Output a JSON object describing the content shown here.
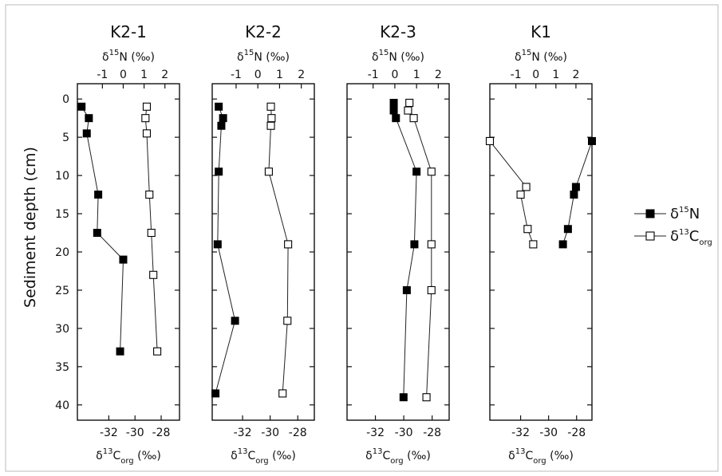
{
  "y_axis": {
    "label": "Sediment depth (cm)",
    "ticks": [
      "0",
      "5",
      "10",
      "15",
      "20",
      "25",
      "30",
      "35",
      "40"
    ]
  },
  "legend": {
    "n15": {
      "prefix": "δ",
      "sup": "15",
      "main": "N"
    },
    "c13": {
      "prefix": "δ",
      "sup": "13",
      "main": "C",
      "sub": "org"
    }
  },
  "top_axis_label": {
    "prefix": "δ",
    "sup": "15",
    "main": "N (‰)"
  },
  "bottom_axis_label": {
    "prefix": "δ",
    "sup": "13",
    "main": "C",
    "sub": "org",
    "unit": " (‰)"
  },
  "colors": {
    "n15_marker": "#000000",
    "c13_marker_fill": "#ffffff",
    "line": "#222222"
  },
  "chart_data": [
    {
      "type": "line",
      "title": "K2-1",
      "ylim": [
        -2,
        42
      ],
      "top_xlim": [
        -2.2,
        2.7
      ],
      "top_ticks": [
        -1,
        0,
        1,
        2
      ],
      "top_tick_labels": [
        "-1",
        "0",
        "1",
        "2"
      ],
      "bottom_xlim": [
        -34.4,
        -26.6
      ],
      "bottom_ticks": [
        -32,
        -30,
        -28
      ],
      "bottom_tick_labels": [
        "-32",
        "-30",
        "-28"
      ],
      "series": [
        {
          "key": "n15",
          "axis": "top",
          "depth": [
            1,
            2.5,
            4.5,
            12.5,
            17.5,
            21,
            33
          ],
          "values": [
            -2.0,
            -1.65,
            -1.75,
            -1.2,
            -1.25,
            0.0,
            -0.15
          ]
        },
        {
          "key": "c13",
          "axis": "bottom",
          "depth": [
            1,
            2.5,
            4.5,
            12.5,
            17.5,
            23,
            33
          ],
          "values": [
            -29.1,
            -29.2,
            -29.1,
            -28.9,
            -28.75,
            -28.6,
            -28.3
          ]
        }
      ]
    },
    {
      "type": "line",
      "title": "K2-2",
      "ylim": [
        -2,
        42
      ],
      "top_xlim": [
        -2.1,
        2.6
      ],
      "top_ticks": [
        -1,
        0,
        1,
        2
      ],
      "top_tick_labels": [
        "-1",
        "0",
        "1",
        "2"
      ],
      "bottom_xlim": [
        -34.2,
        -26.8
      ],
      "bottom_ticks": [
        -32,
        -30,
        -28
      ],
      "bottom_tick_labels": [
        "-32",
        "-30",
        "-28"
      ],
      "series": [
        {
          "key": "n15",
          "axis": "top",
          "depth": [
            1,
            2.5,
            3.5,
            9.5,
            19,
            29,
            38.5
          ],
          "values": [
            -1.8,
            -1.6,
            -1.68,
            -1.8,
            -1.85,
            -1.05,
            -1.95
          ]
        },
        {
          "key": "c13",
          "axis": "bottom",
          "depth": [
            1,
            2.5,
            3.5,
            9.5,
            19,
            29,
            38.5
          ],
          "values": [
            -29.95,
            -29.9,
            -29.95,
            -30.1,
            -28.7,
            -28.75,
            -29.1
          ]
        }
      ]
    },
    {
      "type": "line",
      "title": "K2-3",
      "ylim": [
        -2,
        42
      ],
      "top_xlim": [
        -2.2,
        2.5
      ],
      "top_ticks": [
        -1,
        0,
        1,
        2
      ],
      "top_tick_labels": [
        "-1",
        "0",
        "1",
        "2"
      ],
      "bottom_xlim": [
        -34.0,
        -26.8
      ],
      "bottom_ticks": [
        -32,
        -30,
        -28
      ],
      "bottom_tick_labels": [
        "-32",
        "-30",
        "-28"
      ],
      "series": [
        {
          "key": "n15",
          "axis": "top",
          "depth": [
            0.5,
            1.5,
            2.5,
            9.5,
            19,
            25,
            39
          ],
          "values": [
            -0.05,
            -0.05,
            0.05,
            1.0,
            0.9,
            0.55,
            0.4
          ]
        },
        {
          "key": "c13",
          "axis": "bottom",
          "depth": [
            0.5,
            1.5,
            2.5,
            9.5,
            19,
            25,
            39
          ],
          "values": [
            -29.6,
            -29.7,
            -29.3,
            -28.05,
            -28.05,
            -28.05,
            -28.4
          ]
        }
      ]
    },
    {
      "type": "line",
      "title": "K1",
      "ylim": [
        -2,
        42
      ],
      "top_xlim": [
        -2.3,
        2.8
      ],
      "top_ticks": [
        -1,
        0,
        1,
        2
      ],
      "top_tick_labels": [
        "-1",
        "0",
        "1",
        "2"
      ],
      "bottom_xlim": [
        -34.2,
        -26.9
      ],
      "bottom_ticks": [
        -32,
        -30,
        -28
      ],
      "bottom_tick_labels": [
        "-32",
        "-30",
        "-28"
      ],
      "series": [
        {
          "key": "n15",
          "axis": "top",
          "depth": [
            5.5,
            11.5,
            12.5,
            17,
            19
          ],
          "values": [
            2.8,
            2.0,
            1.9,
            1.6,
            1.35
          ]
        },
        {
          "key": "c13",
          "axis": "bottom",
          "depth": [
            5.5,
            11.5,
            12.5,
            17,
            19
          ],
          "values": [
            -34.2,
            -31.6,
            -32.0,
            -31.5,
            -31.1
          ]
        }
      ]
    }
  ]
}
